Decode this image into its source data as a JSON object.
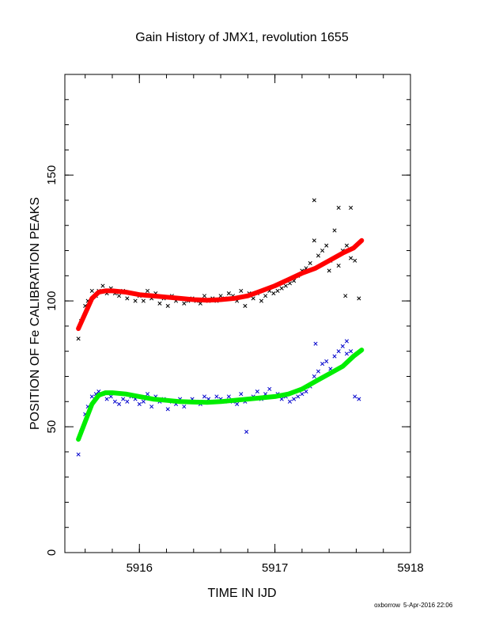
{
  "chart_data": {
    "type": "scatter",
    "title": "Gain History of JMX1, revolution 1655",
    "xlabel": "TIME IN IJD",
    "ylabel": "POSITION OF Fe CALIBRATION PEAKS",
    "xlim": [
      5915.45,
      5918.0
    ],
    "ylim": [
      0,
      190
    ],
    "x_ticks": [
      5916,
      5917,
      5918
    ],
    "x_tick_labels": [
      "5916",
      "5917",
      "5918"
    ],
    "y_ticks": [
      0,
      50,
      100,
      150
    ],
    "y_tick_labels": [
      "0",
      "50",
      "100",
      "150"
    ],
    "grid": false,
    "legend": "none",
    "series": [
      {
        "marker": "x",
        "color": "#000000",
        "x": [
          5915.55,
          5915.57,
          5915.6,
          5915.62,
          5915.65,
          5915.68,
          5915.7,
          5915.73,
          5915.76,
          5915.79,
          5915.82,
          5915.85,
          5915.88,
          5915.91,
          5915.94,
          5915.97,
          5916.0,
          5916.03,
          5916.06,
          5916.09,
          5916.12,
          5916.15,
          5916.18,
          5916.21,
          5916.24,
          5916.27,
          5916.3,
          5916.33,
          5916.36,
          5916.39,
          5916.42,
          5916.45,
          5916.48,
          5916.51,
          5916.54,
          5916.57,
          5916.6,
          5916.63,
          5916.66,
          5916.69,
          5916.72,
          5916.75,
          5916.78,
          5916.81,
          5916.84,
          5916.87,
          5916.9,
          5916.93,
          5916.96,
          5916.99,
          5917.02,
          5917.05,
          5917.08,
          5917.11,
          5917.14,
          5917.17,
          5917.2,
          5917.23,
          5917.26,
          5917.29,
          5917.32,
          5917.35,
          5917.38,
          5917.41,
          5917.44,
          5917.47,
          5917.5,
          5917.53,
          5917.56,
          5917.59,
          5917.62,
          5917.29,
          5917.47,
          5917.56,
          5917.52,
          5917.4
        ],
        "y": [
          85,
          92,
          98,
          100,
          104,
          102,
          104,
          106,
          103,
          105,
          103,
          102,
          104,
          101,
          103,
          100,
          102,
          100,
          104,
          101,
          103,
          99,
          101,
          98,
          102,
          100,
          101,
          99,
          100,
          101,
          100,
          99,
          102,
          100,
          101,
          100,
          102,
          101,
          103,
          102,
          100,
          104,
          98,
          103,
          101,
          103,
          100,
          102,
          104,
          103,
          104,
          105,
          106,
          107,
          108,
          110,
          112,
          113,
          115,
          124,
          118,
          120,
          122,
          116,
          128,
          114,
          120,
          122,
          117,
          116,
          101,
          140,
          137,
          137,
          102,
          112
        ]
      },
      {
        "marker": "x",
        "color": "#0000cc",
        "x": [
          5915.55,
          5915.57,
          5915.6,
          5915.62,
          5915.65,
          5915.68,
          5915.7,
          5915.73,
          5915.76,
          5915.79,
          5915.82,
          5915.85,
          5915.88,
          5915.91,
          5915.94,
          5915.97,
          5916.0,
          5916.03,
          5916.06,
          5916.09,
          5916.12,
          5916.15,
          5916.18,
          5916.21,
          5916.24,
          5916.27,
          5916.3,
          5916.33,
          5916.36,
          5916.39,
          5916.42,
          5916.45,
          5916.48,
          5916.51,
          5916.54,
          5916.57,
          5916.6,
          5916.63,
          5916.66,
          5916.69,
          5916.72,
          5916.75,
          5916.78,
          5916.81,
          5916.84,
          5916.87,
          5916.9,
          5916.93,
          5916.96,
          5916.99,
          5917.02,
          5917.05,
          5917.08,
          5917.11,
          5917.14,
          5917.17,
          5917.2,
          5917.23,
          5917.26,
          5917.29,
          5917.32,
          5917.35,
          5917.38,
          5917.41,
          5917.44,
          5917.47,
          5917.5,
          5917.53,
          5917.56,
          5917.59,
          5917.62,
          5916.79,
          5917.3,
          5917.53
        ],
        "y": [
          39,
          48,
          55,
          58,
          62,
          63,
          64,
          63,
          61,
          62,
          60,
          59,
          61,
          60,
          62,
          61,
          59,
          60,
          63,
          58,
          62,
          60,
          61,
          57,
          60,
          59,
          61,
          58,
          60,
          61,
          60,
          59,
          62,
          61,
          60,
          62,
          61,
          60,
          62,
          60,
          59,
          63,
          60,
          61,
          62,
          64,
          61,
          63,
          65,
          62,
          63,
          61,
          62,
          60,
          61,
          62,
          63,
          64,
          66,
          70,
          72,
          75,
          76,
          73,
          78,
          80,
          82,
          79,
          80,
          62,
          61,
          48,
          83,
          84
        ]
      },
      {
        "marker": "line",
        "color": "#ff0000",
        "x": [
          5915.55,
          5915.6,
          5915.65,
          5915.7,
          5915.75,
          5915.8,
          5915.9,
          5916.0,
          5916.1,
          5916.2,
          5916.3,
          5916.4,
          5916.5,
          5916.6,
          5916.7,
          5916.8,
          5916.9,
          5917.0,
          5917.1,
          5917.2,
          5917.3,
          5917.4,
          5917.5,
          5917.58,
          5917.64
        ],
        "y": [
          89,
          95,
          101,
          103.5,
          104,
          104,
          103.5,
          102.5,
          102,
          101.5,
          101,
          100.5,
          100.3,
          100.5,
          101,
          102,
          104,
          106,
          108.5,
          111,
          113,
          116,
          119,
          121,
          124
        ]
      },
      {
        "marker": "line",
        "color": "#00ee00",
        "x": [
          5915.55,
          5915.6,
          5915.65,
          5915.7,
          5915.75,
          5915.8,
          5915.9,
          5916.0,
          5916.1,
          5916.2,
          5916.3,
          5916.4,
          5916.5,
          5916.6,
          5916.7,
          5916.8,
          5916.9,
          5917.0,
          5917.1,
          5917.2,
          5917.3,
          5917.4,
          5917.5,
          5917.58,
          5917.64
        ],
        "y": [
          45,
          52,
          59,
          62.5,
          63.5,
          63.5,
          63,
          62,
          61,
          60.5,
          60,
          59.8,
          59.7,
          60,
          60.5,
          61,
          61.5,
          62,
          63,
          65,
          68,
          71,
          74,
          78,
          80.5
        ]
      }
    ]
  },
  "footer": {
    "author": "oxborrow",
    "timestamp": "5-Apr-2016 22:06"
  }
}
